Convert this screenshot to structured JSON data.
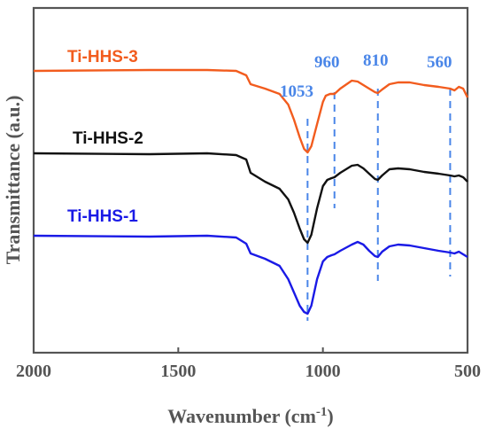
{
  "chart_data": {
    "type": "line",
    "xlabel": "Wavenumber (cm",
    "xlabel_sup": "-1",
    "xlabel_close": ")",
    "ylabel": "Transmittance (a.u.)",
    "xlim": [
      2000,
      500
    ],
    "x_reversed": true,
    "yticks_shown": false,
    "xticks": [
      2000,
      1500,
      1000,
      500
    ],
    "xtick_labels": [
      "2000",
      "1500",
      "1000",
      "500"
    ],
    "grid": false,
    "series": [
      {
        "name": "Ti-HHS-3",
        "color": "#f25c1e",
        "points": [
          [
            2000,
            80
          ],
          [
            1600,
            79
          ],
          [
            1400,
            79
          ],
          [
            1300,
            80
          ],
          [
            1265,
            85
          ],
          [
            1250,
            95
          ],
          [
            1200,
            100
          ],
          [
            1150,
            106
          ],
          [
            1120,
            118
          ],
          [
            1100,
            135
          ],
          [
            1080,
            155
          ],
          [
            1065,
            168
          ],
          [
            1053,
            172
          ],
          [
            1040,
            165
          ],
          [
            1020,
            140
          ],
          [
            1000,
            115
          ],
          [
            990,
            108
          ],
          [
            975,
            106
          ],
          [
            960,
            106
          ],
          [
            940,
            100
          ],
          [
            900,
            91
          ],
          [
            880,
            92
          ],
          [
            860,
            96
          ],
          [
            840,
            100
          ],
          [
            820,
            104
          ],
          [
            810,
            105
          ],
          [
            795,
            101
          ],
          [
            770,
            95
          ],
          [
            740,
            93
          ],
          [
            700,
            93
          ],
          [
            650,
            96
          ],
          [
            600,
            98
          ],
          [
            560,
            100
          ],
          [
            545,
            102
          ],
          [
            530,
            98
          ],
          [
            515,
            100
          ],
          [
            500,
            110
          ]
        ]
      },
      {
        "name": "Ti-HHS-2",
        "color": "#111111",
        "points": [
          [
            2000,
            173
          ],
          [
            1600,
            174
          ],
          [
            1400,
            173
          ],
          [
            1300,
            175
          ],
          [
            1265,
            180
          ],
          [
            1250,
            195
          ],
          [
            1200,
            205
          ],
          [
            1150,
            213
          ],
          [
            1120,
            225
          ],
          [
            1100,
            240
          ],
          [
            1080,
            258
          ],
          [
            1065,
            270
          ],
          [
            1053,
            274
          ],
          [
            1040,
            265
          ],
          [
            1020,
            235
          ],
          [
            1000,
            210
          ],
          [
            985,
            203
          ],
          [
            970,
            201
          ],
          [
            960,
            200
          ],
          [
            940,
            195
          ],
          [
            900,
            187
          ],
          [
            880,
            186
          ],
          [
            860,
            190
          ],
          [
            840,
            196
          ],
          [
            820,
            202
          ],
          [
            810,
            203
          ],
          [
            795,
            198
          ],
          [
            770,
            191
          ],
          [
            740,
            190
          ],
          [
            700,
            191
          ],
          [
            650,
            194
          ],
          [
            600,
            196
          ],
          [
            560,
            198
          ],
          [
            545,
            199
          ],
          [
            530,
            198
          ],
          [
            515,
            200
          ],
          [
            500,
            205
          ]
        ]
      },
      {
        "name": "Ti-HHS-1",
        "color": "#1a1ae6",
        "points": [
          [
            2000,
            266
          ],
          [
            1600,
            267
          ],
          [
            1400,
            266
          ],
          [
            1300,
            268
          ],
          [
            1265,
            275
          ],
          [
            1250,
            286
          ],
          [
            1200,
            292
          ],
          [
            1150,
            300
          ],
          [
            1120,
            315
          ],
          [
            1100,
            330
          ],
          [
            1080,
            345
          ],
          [
            1065,
            352
          ],
          [
            1053,
            354
          ],
          [
            1040,
            345
          ],
          [
            1020,
            315
          ],
          [
            1000,
            295
          ],
          [
            985,
            290
          ],
          [
            970,
            288
          ],
          [
            960,
            287
          ],
          [
            940,
            283
          ],
          [
            900,
            276
          ],
          [
            880,
            273
          ],
          [
            860,
            276
          ],
          [
            840,
            283
          ],
          [
            820,
            289
          ],
          [
            810,
            290
          ],
          [
            795,
            284
          ],
          [
            770,
            278
          ],
          [
            740,
            276
          ],
          [
            700,
            277
          ],
          [
            650,
            280
          ],
          [
            600,
            283
          ],
          [
            560,
            285
          ],
          [
            545,
            286
          ],
          [
            530,
            284
          ],
          [
            515,
            287
          ],
          [
            500,
            290
          ]
        ]
      }
    ],
    "series_labels": [
      "Ti-HHS-3",
      "Ti-HHS-2",
      "Ti-HHS-1"
    ],
    "peak_markers": [
      {
        "x": 1053,
        "label": "1053"
      },
      {
        "x": 960,
        "label": "960"
      },
      {
        "x": 810,
        "label": "810"
      },
      {
        "x": 560,
        "label": "560"
      }
    ],
    "peak_line_color": "#4a86e8",
    "peak_label_color": "#4a86e8"
  }
}
